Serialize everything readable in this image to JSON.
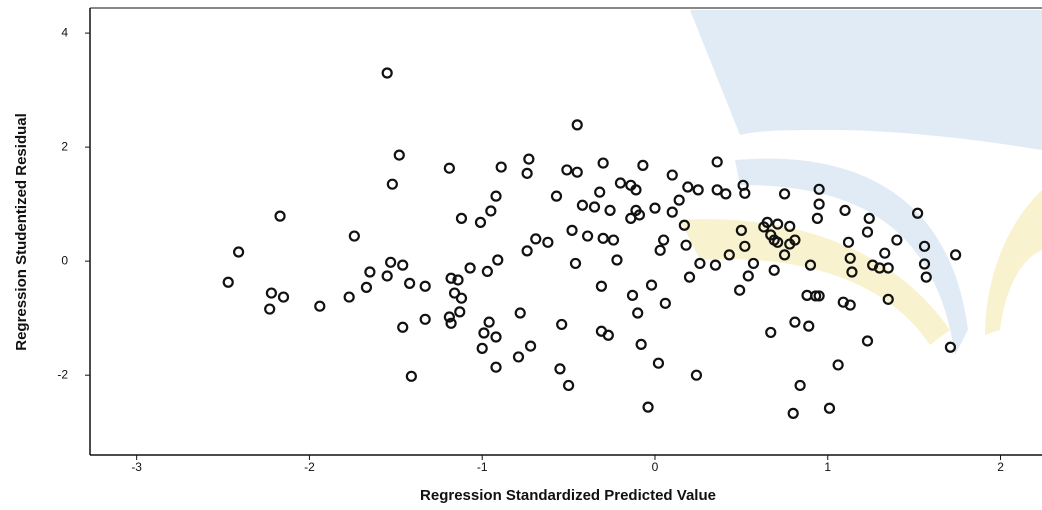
{
  "chart_data": {
    "type": "scatter",
    "x_label": "Regression Standardized Predicted Value",
    "y_label": "Regression Studentized Residual",
    "color": "#111111",
    "xlim": [
      -3.27,
      2.24
    ],
    "ylim": [
      -3.4,
      4.44
    ],
    "xticks": [
      -3,
      -2,
      -1,
      0,
      1,
      2
    ],
    "yticks": [
      -2,
      0,
      2,
      4
    ],
    "x": [
      -1.55,
      -0.45,
      -1.48,
      -1.52,
      -1.19,
      -0.89,
      -0.73,
      -0.74,
      -0.51,
      -0.45,
      -0.3,
      -0.07,
      0.1,
      0.36,
      -2.17,
      -2.41,
      -2.47,
      -2.22,
      -2.15,
      -2.23,
      -1.94,
      -1.77,
      -1.74,
      -1.67,
      -1.65,
      -1.55,
      -1.53,
      -1.46,
      -1.42,
      -1.33,
      -1.33,
      -1.46,
      -1.41,
      -1.19,
      -1.18,
      -1.14,
      -1.16,
      -1.12,
      -1.13,
      -1.18,
      -1.07,
      -1.12,
      -1.01,
      -0.95,
      -0.92,
      -0.97,
      -0.91,
      -0.96,
      -0.99,
      -0.92,
      -1.0,
      -0.92,
      -0.79,
      -0.72,
      -0.78,
      -0.74,
      -0.69,
      -0.62,
      -0.57,
      -0.54,
      -0.55,
      -0.5,
      -0.48,
      -0.46,
      -0.42,
      -0.39,
      -0.35,
      -0.32,
      -0.3,
      -0.24,
      -0.26,
      -0.31,
      -0.27,
      -0.31,
      -0.22,
      -0.2,
      -0.14,
      -0.11,
      -0.11,
      -0.14,
      -0.09,
      -0.13,
      -0.1,
      -0.08,
      -0.04,
      -0.02,
      0.02,
      0.06,
      0.03,
      0.05,
      0.0,
      0.1,
      0.14,
      0.19,
      0.25,
      0.17,
      0.18,
      0.2,
      0.24,
      0.26,
      0.35,
      0.36,
      0.41,
      0.43,
      0.51,
      0.52,
      0.49,
      0.52,
      0.5,
      0.57,
      0.67,
      0.63,
      0.67,
      0.75,
      0.69,
      0.69,
      0.75,
      0.71,
      0.78,
      0.81,
      0.78,
      0.65,
      0.71,
      0.9,
      0.88,
      0.93,
      0.95,
      0.81,
      0.89,
      0.84,
      0.8,
      1.01,
      1.06,
      0.95,
      0.94,
      0.95,
      1.1,
      1.12,
      1.13,
      1.14,
      1.09,
      1.13,
      1.23,
      1.24,
      1.23,
      1.26,
      1.3,
      1.35,
      1.33,
      1.35,
      1.4,
      1.52,
      1.56,
      1.56,
      1.57,
      1.71,
      1.74,
      0.54
    ],
    "values": [
      3.3,
      2.39,
      1.86,
      1.35,
      1.63,
      1.65,
      1.79,
      1.54,
      1.6,
      1.56,
      1.72,
      1.68,
      1.51,
      1.74,
      0.79,
      0.16,
      -0.37,
      -0.56,
      -0.63,
      -0.84,
      -0.79,
      -0.63,
      0.44,
      -0.46,
      -0.19,
      -0.26,
      -0.02,
      -0.07,
      -0.39,
      -0.44,
      -1.02,
      -1.16,
      -2.02,
      -0.98,
      -0.3,
      -0.33,
      -0.56,
      -0.65,
      -0.89,
      -1.09,
      -0.12,
      0.75,
      0.68,
      0.88,
      1.14,
      -0.18,
      0.02,
      -1.07,
      -1.26,
      -1.33,
      -1.53,
      -1.86,
      -1.68,
      -1.49,
      -0.91,
      0.18,
      0.39,
      0.33,
      1.14,
      -1.11,
      -1.89,
      -2.18,
      0.54,
      -0.04,
      0.98,
      0.44,
      0.95,
      1.21,
      0.4,
      0.37,
      0.89,
      -1.23,
      -1.3,
      -0.44,
      0.02,
      1.37,
      1.33,
      1.25,
      0.89,
      0.75,
      0.81,
      -0.6,
      -0.91,
      -1.46,
      -2.56,
      -0.42,
      -1.79,
      -0.74,
      0.19,
      0.37,
      0.93,
      0.86,
      1.07,
      1.3,
      1.25,
      0.63,
      0.28,
      -0.28,
      -2.0,
      -0.04,
      -0.07,
      1.25,
      1.18,
      0.11,
      1.33,
      1.19,
      -0.51,
      0.26,
      0.54,
      -0.04,
      0.46,
      0.6,
      -1.25,
      1.18,
      0.37,
      -0.16,
      0.11,
      0.33,
      0.3,
      0.37,
      0.61,
      0.68,
      0.65,
      -0.07,
      -0.6,
      -0.61,
      -0.61,
      -1.07,
      -1.14,
      -2.18,
      -2.67,
      -2.58,
      -1.82,
      1.26,
      0.75,
      1.0,
      0.89,
      0.33,
      0.05,
      -0.19,
      -0.72,
      -0.77,
      -1.4,
      0.75,
      0.51,
      -0.07,
      -0.12,
      -0.12,
      0.14,
      -0.67,
      0.37,
      0.84,
      0.26,
      -0.05,
      -0.28,
      -1.51,
      0.11,
      -0.26
    ]
  }
}
